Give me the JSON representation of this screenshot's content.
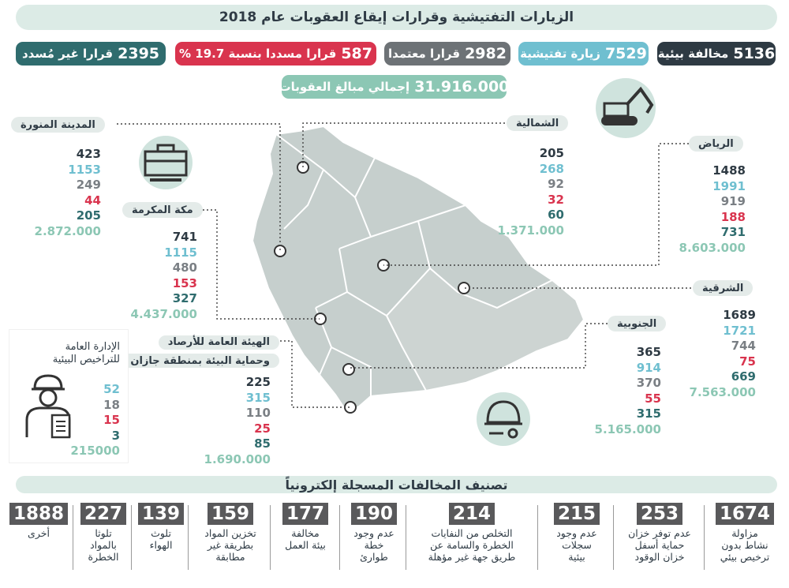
{
  "title": "الزيارات التفتيشية وقرارات إيقاع العقوبات عام 2018",
  "top_stats": [
    {
      "num": "5136",
      "label": "مخالفة بيئية",
      "color": "#2e3a43"
    },
    {
      "num": "7529",
      "label": "زيارة تفتيشية",
      "color": "#6fbfd0"
    },
    {
      "num": "2982",
      "label": "قرارا معتمدا",
      "color": "#6d7276"
    },
    {
      "num": "587",
      "label": "قرارا مسددا بنسبة 19.7 %",
      "color": "#d9344e"
    },
    {
      "num": "2395",
      "label": "قرارا غير مُسدد",
      "color": "#2f6c6e"
    }
  ],
  "total": {
    "num": "31.916.000",
    "label": "إجمالي مبالغ العقوبات"
  },
  "regions": [
    {
      "name": "المدينة المنورة",
      "values": [
        "423",
        "1153",
        "249",
        "44",
        "205",
        "2.872.000"
      ]
    },
    {
      "name": "الشمالية",
      "values": [
        "205",
        "268",
        "92",
        "32",
        "60",
        "1.371.000"
      ]
    },
    {
      "name": "الرياض",
      "values": [
        "1488",
        "1991",
        "919",
        "188",
        "731",
        "8.603.000"
      ]
    },
    {
      "name": "مكة المكرمة",
      "values": [
        "741",
        "1115",
        "480",
        "153",
        "327",
        "4.437.000"
      ]
    },
    {
      "name": "الشرقية",
      "values": [
        "1689",
        "1721",
        "744",
        "75",
        "669",
        "7.563.000"
      ]
    },
    {
      "name": "الجنوبية",
      "values": [
        "365",
        "914",
        "370",
        "55",
        "315",
        "5.165.000"
      ]
    },
    {
      "name1": "الهيئة العامة للأرصاد",
      "name2": "وحماية البيئة بمنطقة جازان",
      "values": [
        "225",
        "315",
        "110",
        "25",
        "85",
        "1.690.000"
      ]
    }
  ],
  "licenses": {
    "line1": "الإدارة العامة",
    "line2": "للتراخيص البيئية",
    "values": [
      "52",
      "18",
      "15",
      "3",
      "215000"
    ]
  },
  "section_title": "تصنيف المخالفات المسجلة إلكترونياً",
  "categories": [
    {
      "num": "1674",
      "l1": "مزاولة",
      "l2": "نشاط بدون",
      "l3": "ترخيص بيئي"
    },
    {
      "num": "253",
      "l1": "عدم توفر خزان",
      "l2": "حماية أسفل",
      "l3": "خزان الوقود"
    },
    {
      "num": "215",
      "l1": "عدم وجود",
      "l2": "سجلات",
      "l3": "بيئية"
    },
    {
      "num": "214",
      "l1": "التخلص من النفايات",
      "l2": "الخطرة والسامة عن",
      "l3": "طريق جهة غير مؤهلة"
    },
    {
      "num": "190",
      "l1": "عدم وجود",
      "l2": "خطة",
      "l3": "طوارئ"
    },
    {
      "num": "177",
      "l1": "مخالفة",
      "l2": "بيئة العمل",
      "l3": ""
    },
    {
      "num": "159",
      "l1": "تخزين المواد",
      "l2": "بطريقة غير",
      "l3": "مطابقة"
    },
    {
      "num": "139",
      "l1": "تلوث",
      "l2": "الهواء",
      "l3": ""
    },
    {
      "num": "227",
      "l1": "تلوثا",
      "l2": "بالمواد",
      "l3": "الخطرة"
    },
    {
      "num": "1888",
      "l1": "أخرى",
      "l2": "",
      "l3": ""
    }
  ]
}
